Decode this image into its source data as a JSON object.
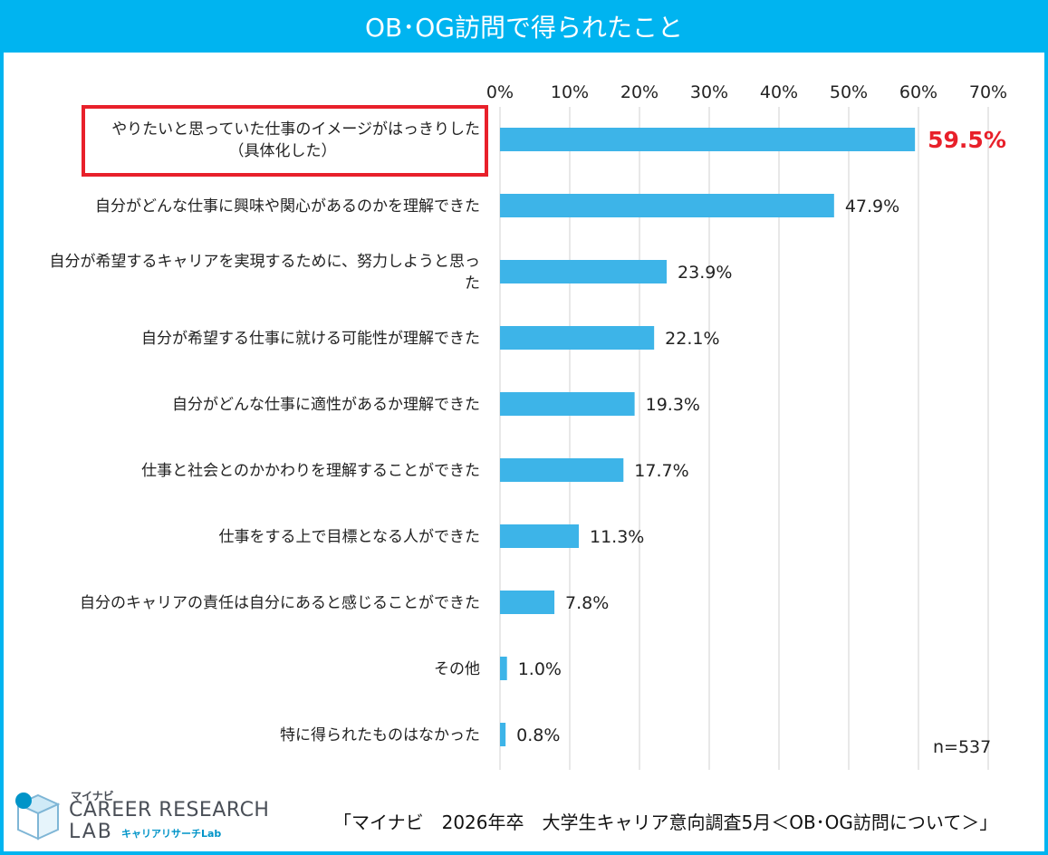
{
  "title": "OB･OG訪問で得られたこと",
  "sample_size": "n=537",
  "source": "「マイナビ　2026年卒　大学生キャリア意向調査5月＜OB･OG訪問について＞」",
  "logo": {
    "brand": "マイナビ",
    "line1": "CAREER RESEARCH",
    "line2": "LAB",
    "sub": "キャリアリサーチLab"
  },
  "colors": {
    "accent": "#00b4f0",
    "bar": "#3db4e8",
    "highlight": "#e8202a"
  },
  "chart_data": {
    "type": "bar",
    "orientation": "horizontal",
    "x_ticks": [
      "0%",
      "10%",
      "20%",
      "30%",
      "40%",
      "50%",
      "60%",
      "70%"
    ],
    "xlim": [
      0,
      70
    ],
    "grid": true,
    "categories": [
      [
        "やりたいと思っていた仕事のイメージがはっきりした",
        "（具体化した）"
      ],
      [
        "自分がどんな仕事に興味や関心があるのかを理解できた"
      ],
      [
        "自分が希望するキャリアを実現するために、努力しようと思っ",
        "た"
      ],
      [
        "自分が希望する仕事に就ける可能性が理解できた"
      ],
      [
        "自分がどんな仕事に適性があるか理解できた"
      ],
      [
        "仕事と社会とのかかわりを理解することができた"
      ],
      [
        "仕事をする上で目標となる人ができた"
      ],
      [
        "自分のキャリアの責任は自分にあると感じることができた"
      ],
      [
        "その他"
      ],
      [
        "特に得られたものはなかった"
      ]
    ],
    "values": [
      59.5,
      47.9,
      23.9,
      22.1,
      19.3,
      17.7,
      11.3,
      7.8,
      1.0,
      0.8
    ],
    "value_labels": [
      "59.5%",
      "47.9%",
      "23.9%",
      "22.1%",
      "19.3%",
      "17.7%",
      "11.3%",
      "7.8%",
      "1.0%",
      "0.8%"
    ],
    "highlight_index": 0
  }
}
